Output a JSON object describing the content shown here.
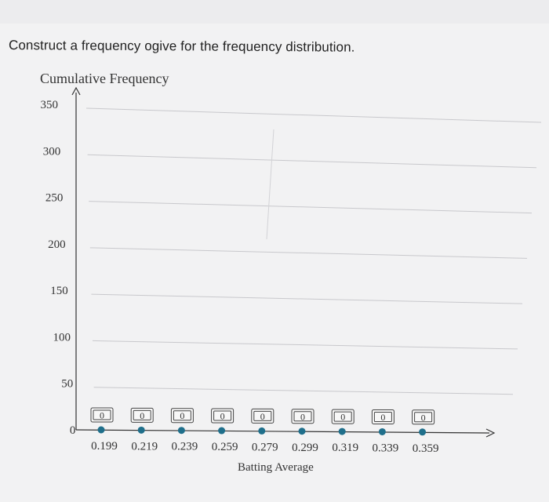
{
  "question": "Construct a frequency ogive for the frequency distribution.",
  "chart_data": {
    "type": "line",
    "xlabel": "Batting Average",
    "ylabel": "Cumulative Frequency",
    "x": [
      "0.199",
      "0.219",
      "0.239",
      "0.259",
      "0.279",
      "0.299",
      "0.319",
      "0.339",
      "0.359"
    ],
    "y_ticks": [
      "350",
      "300",
      "250",
      "200",
      "150",
      "100",
      "50",
      "0"
    ],
    "values": [
      0,
      0,
      0,
      0,
      0,
      0,
      0,
      0,
      0
    ],
    "input_labels": [
      "0",
      "0",
      "0",
      "0",
      "0",
      "0",
      "0",
      "0",
      "0"
    ],
    "ylim": [
      0,
      350
    ],
    "grid": true,
    "point_color": "#1f6f8b"
  }
}
